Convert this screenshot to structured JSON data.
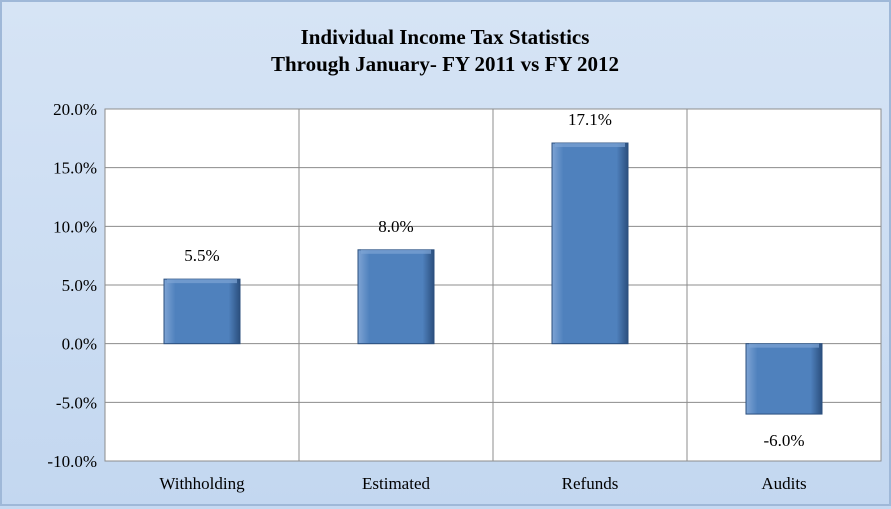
{
  "chart_data": {
    "type": "bar",
    "title_lines": [
      "Individual Income Tax Statistics",
      "Through January- FY 2011 vs FY 2012"
    ],
    "categories": [
      "Withholding",
      "Estimated",
      "Refunds",
      "Audits"
    ],
    "values": [
      5.5,
      8.0,
      17.1,
      -6.0
    ],
    "value_labels": [
      "5.5%",
      "8.0%",
      "17.1%",
      "-6.0%"
    ],
    "y_ticks": [
      20,
      15,
      10,
      5,
      0,
      -5,
      -10
    ],
    "y_tick_labels": [
      "20.0%",
      "15.0%",
      "10.0%",
      "5.0%",
      "0.0%",
      "-5.0%",
      "-10.0%"
    ],
    "ylim": [
      -10,
      20
    ],
    "xlabel": "",
    "ylabel": "",
    "grid": true,
    "legend": "none",
    "colors": {
      "bar": "#4f81bd",
      "bar_light": "#7ea4d4",
      "bar_dark": "#2b4f7e",
      "plot_bg": "#ffffff",
      "grid": "#8c8c8c"
    }
  }
}
